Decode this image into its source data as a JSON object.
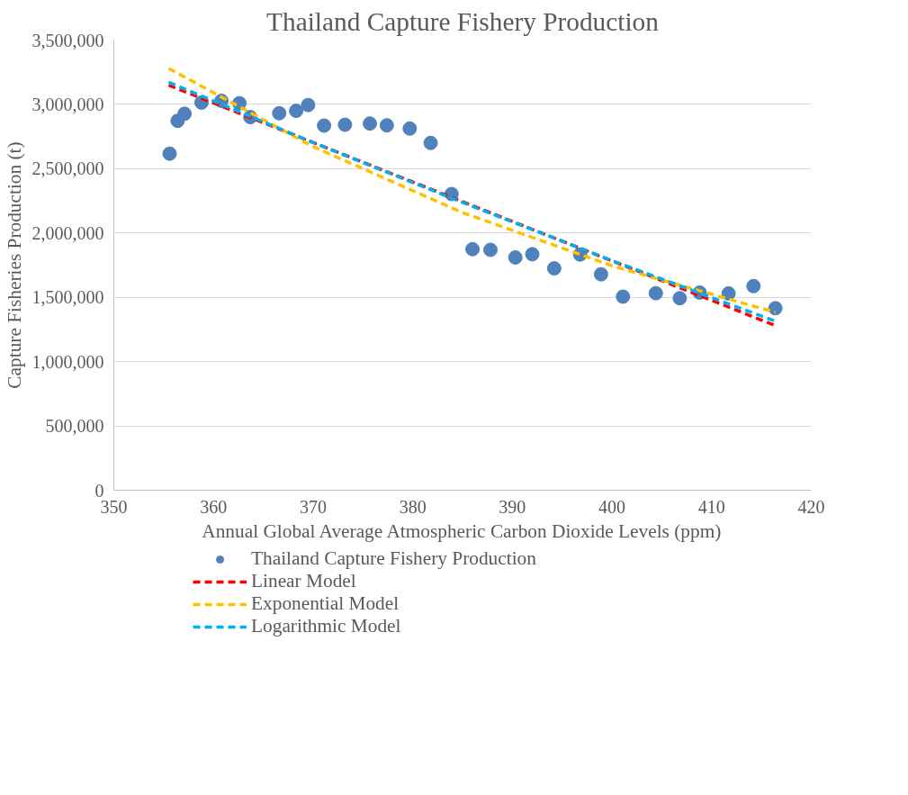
{
  "chart_data": {
    "type": "scatter",
    "title": "Thailand Capture Fishery Production",
    "xlabel": "Annual Global Average Atmospheric Carbon Dioxide Levels (ppm)",
    "ylabel": "Capture Fisheries Production (t)",
    "xlim": [
      350,
      420
    ],
    "xticks": [
      350,
      360,
      370,
      380,
      390,
      400,
      410,
      420
    ],
    "ylim": [
      0,
      3500000
    ],
    "yticks": [
      {
        "value": 0,
        "label": "0"
      },
      {
        "value": 500000,
        "label": "500,000"
      },
      {
        "value": 1000000,
        "label": "1,000,000"
      },
      {
        "value": 1500000,
        "label": "1,500,000"
      },
      {
        "value": 2000000,
        "label": "2,000,000"
      },
      {
        "value": 2500000,
        "label": "2,500,000"
      },
      {
        "value": 3000000,
        "label": "3,000,000"
      },
      {
        "value": 3500000,
        "label": "3,500,000"
      }
    ],
    "grid": "y",
    "legend": "bottom",
    "marker": "circle",
    "series": [
      {
        "name": "Thailand Capture Fishery Production",
        "type": "scatter",
        "color": "#4f81bd",
        "x": [
          355.6,
          356.4,
          357.1,
          358.8,
          360.8,
          362.6,
          363.7,
          366.6,
          368.3,
          369.5,
          371.1,
          373.2,
          375.7,
          377.4,
          379.7,
          381.8,
          383.9,
          386.0,
          387.8,
          390.3,
          392.0,
          394.2,
          396.8,
          398.9,
          401.1,
          404.4,
          406.8,
          408.8,
          411.7,
          414.2,
          416.4
        ],
        "values": [
          2617000,
          2872000,
          2927000,
          3014000,
          3028000,
          3009000,
          2901000,
          2931000,
          2950000,
          2995000,
          2835000,
          2842000,
          2851000,
          2837000,
          2812000,
          2700000,
          2303000,
          1874000,
          1869000,
          1810000,
          1835000,
          1725000,
          1833000,
          1679000,
          1505000,
          1532000,
          1493000,
          1537000,
          1530000,
          1587000,
          1415000
        ]
      },
      {
        "name": "Linear Model",
        "type": "line",
        "line_style": "dashed",
        "marker": "none",
        "color": "#ff0000",
        "x": [
          355.5,
          416.4
        ],
        "values": [
          3149000,
          1280000
        ]
      },
      {
        "name": "Exponential Model",
        "type": "line",
        "line_style": "dashed",
        "marker": "none",
        "color": "#ffc000",
        "x": [
          355.5,
          370,
          385,
          400,
          416.4
        ],
        "values": [
          3280000,
          2671000,
          2159000,
          1745000,
          1383000
        ]
      },
      {
        "name": "Logarithmic Model",
        "type": "line",
        "line_style": "dashed",
        "marker": "none",
        "color": "#00b0f0",
        "x": [
          355.5,
          370,
          385,
          400,
          416.4
        ],
        "values": [
          3172000,
          2703000,
          2237000,
          1786000,
          1314000
        ]
      }
    ]
  }
}
